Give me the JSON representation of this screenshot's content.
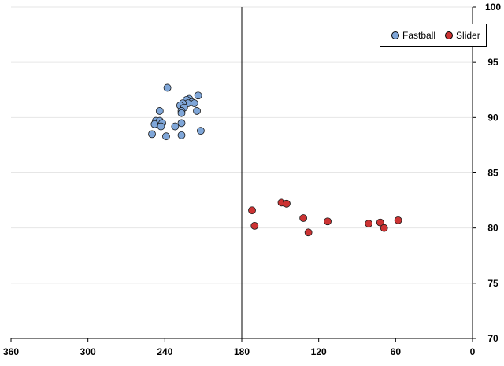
{
  "chart_data": {
    "type": "scatter",
    "title": "",
    "xlabel": "",
    "ylabel": "",
    "xlim": [
      360,
      0
    ],
    "ylim": [
      70,
      100
    ],
    "x_ticks": [
      360,
      300,
      240,
      180,
      120,
      60,
      0
    ],
    "y_ticks": [
      70,
      75,
      80,
      85,
      90,
      95,
      100
    ],
    "x_axis_reversed": true,
    "y_axis_position": "right",
    "gridlines": "horizontal",
    "legend_position": "top-right",
    "series": [
      {
        "name": "Fastball",
        "color": "#7FA6D8",
        "points": [
          [
            238,
            92.7
          ],
          [
            214,
            92.0
          ],
          [
            221,
            91.7
          ],
          [
            223,
            91.6
          ],
          [
            219,
            91.4
          ],
          [
            222,
            91.3
          ],
          [
            217,
            91.3
          ],
          [
            226,
            91.3
          ],
          [
            228,
            91.1
          ],
          [
            225,
            90.9
          ],
          [
            227,
            90.6
          ],
          [
            215,
            90.6
          ],
          [
            227,
            90.4
          ],
          [
            244,
            90.6
          ],
          [
            247,
            89.7
          ],
          [
            244,
            89.7
          ],
          [
            242,
            89.5
          ],
          [
            248,
            89.4
          ],
          [
            227,
            89.5
          ],
          [
            243,
            89.2
          ],
          [
            232,
            89.2
          ],
          [
            212,
            88.8
          ],
          [
            250,
            88.5
          ],
          [
            239,
            88.3
          ],
          [
            227,
            88.4
          ]
        ]
      },
      {
        "name": "Slider",
        "color": "#CC3333",
        "points": [
          [
            172,
            81.6
          ],
          [
            149,
            82.3
          ],
          [
            145,
            82.2
          ],
          [
            132,
            80.9
          ],
          [
            113,
            80.6
          ],
          [
            58,
            80.7
          ],
          [
            72,
            80.5
          ],
          [
            81,
            80.4
          ],
          [
            69,
            80.0
          ],
          [
            170,
            80.2
          ],
          [
            128,
            79.6
          ]
        ]
      }
    ]
  }
}
